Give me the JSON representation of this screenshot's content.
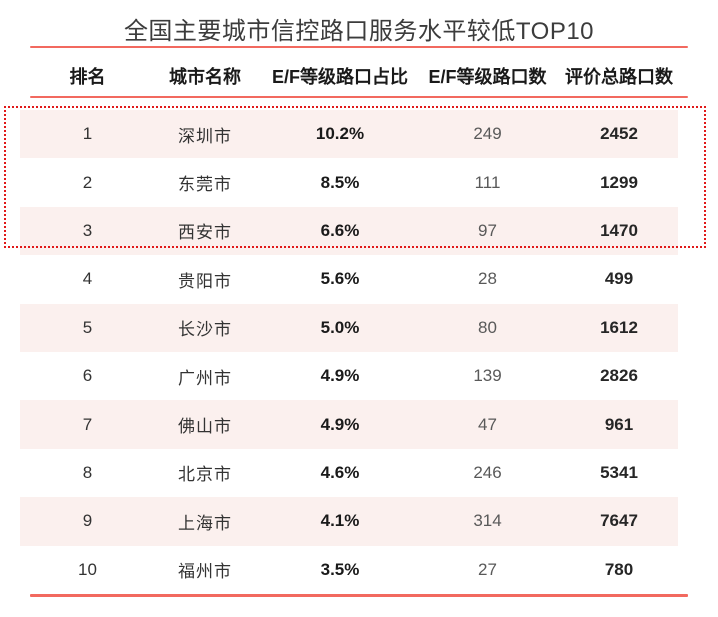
{
  "page": {
    "title": "全国主要城市信控路口服务水平较低TOP10"
  },
  "colors": {
    "accent_line": "#f2695f",
    "highlight_border": "#e11919",
    "zebra_row": "#fbf0ee",
    "header_text": "#1a1a1a",
    "muted_count_text": "#595959"
  },
  "table": {
    "headers": [
      "排名",
      "城市名称",
      "E/F等级路口占比",
      "E/F等级路口数",
      "评价总路口数"
    ],
    "highlighted_ranks": [
      1,
      2,
      3
    ],
    "rows": [
      {
        "rank": "1",
        "city": "深圳市",
        "ratio": "10.2%",
        "count": "249",
        "total": "2452"
      },
      {
        "rank": "2",
        "city": "东莞市",
        "ratio": "8.5%",
        "count": "111",
        "total": "1299"
      },
      {
        "rank": "3",
        "city": "西安市",
        "ratio": "6.6%",
        "count": "97",
        "total": "1470"
      },
      {
        "rank": "4",
        "city": "贵阳市",
        "ratio": "5.6%",
        "count": "28",
        "total": "499"
      },
      {
        "rank": "5",
        "city": "长沙市",
        "ratio": "5.0%",
        "count": "80",
        "total": "1612"
      },
      {
        "rank": "6",
        "city": "广州市",
        "ratio": "4.9%",
        "count": "139",
        "total": "2826"
      },
      {
        "rank": "7",
        "city": "佛山市",
        "ratio": "4.9%",
        "count": "47",
        "total": "961"
      },
      {
        "rank": "8",
        "city": "北京市",
        "ratio": "4.6%",
        "count": "246",
        "total": "5341"
      },
      {
        "rank": "9",
        "city": "上海市",
        "ratio": "4.1%",
        "count": "314",
        "total": "7647"
      },
      {
        "rank": "10",
        "city": "福州市",
        "ratio": "3.5%",
        "count": "27",
        "total": "780"
      }
    ]
  },
  "chart_data": {
    "type": "table",
    "title": "全国主要城市信控路口服务水平较低TOP10",
    "columns": [
      "排名",
      "城市名称",
      "E/F等级路口占比",
      "E/F等级路口数",
      "评价总路口数"
    ],
    "categories": [
      "深圳市",
      "东莞市",
      "西安市",
      "贵阳市",
      "长沙市",
      "广州市",
      "佛山市",
      "北京市",
      "上海市",
      "福州市"
    ],
    "series": [
      {
        "name": "E/F等级路口占比(%)",
        "values": [
          10.2,
          8.5,
          6.6,
          5.6,
          5.0,
          4.9,
          4.9,
          4.6,
          4.1,
          3.5
        ]
      },
      {
        "name": "E/F等级路口数",
        "values": [
          249,
          111,
          97,
          28,
          80,
          139,
          47,
          246,
          314,
          27
        ]
      },
      {
        "name": "评价总路口数",
        "values": [
          2452,
          1299,
          1470,
          499,
          1612,
          2826,
          961,
          5341,
          7647,
          780
        ]
      }
    ],
    "annotations": [
      "前三名(深圳市、东莞市、西安市)以红色虚线框突出显示"
    ]
  }
}
